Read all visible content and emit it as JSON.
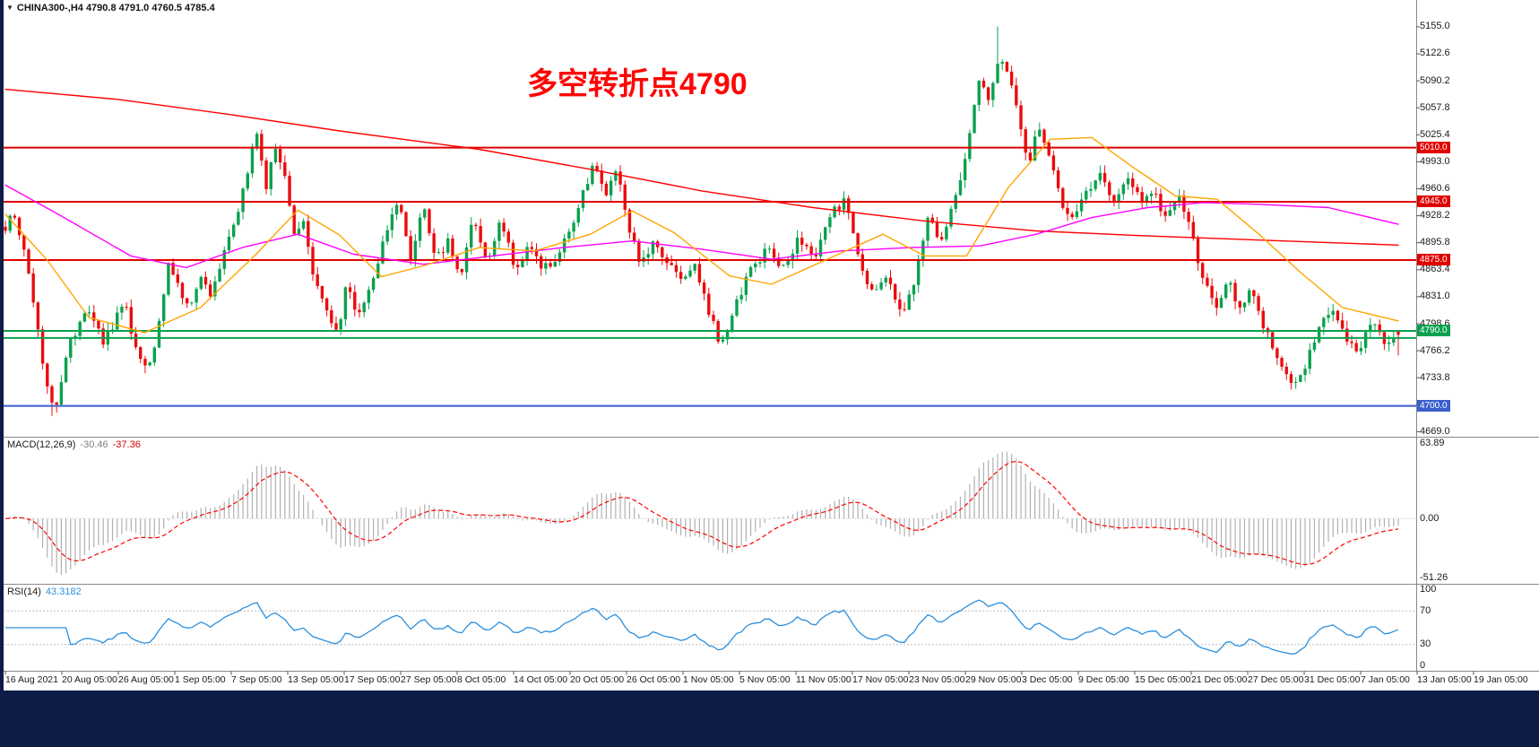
{
  "chart": {
    "overlay": {
      "arrow": "▼",
      "text": "CHINA300-,H4  4790.8 4791.0 4760.5 4785.4"
    },
    "annotation": {
      "text": "多空转折点4790",
      "color": "#fe0606"
    }
  },
  "chart_data": {
    "type": "candlestick",
    "symbol": "CHINA300-",
    "timeframe": "H4",
    "title": "CHINA300-,H4",
    "last_quote": {
      "open": 4790.8,
      "high": 4791.0,
      "low": 4760.5,
      "close": 4785.4
    },
    "extremes": {
      "high": 5155.4,
      "low": 4688.0
    },
    "num_candles": 300,
    "style": {
      "up_color": "#0aa14e",
      "down_color": "#ec0b0b",
      "macd_hist": "#b0b0b0",
      "macd_signal": "#ff0000",
      "rsi_line": "#2a8fdd",
      "background": "#ffffff",
      "panel_border": "#888888",
      "footer_color": "#0c1c47"
    },
    "y_axis": {
      "ticks": [
        5155.0,
        5122.6,
        5090.2,
        5057.8,
        5025.4,
        4993.0,
        4960.6,
        4928.2,
        4895.8,
        4863.4,
        4831.0,
        4798.6,
        4766.2,
        4733.8,
        4701.4,
        4669.0
      ],
      "range": [
        4663,
        5185
      ]
    },
    "x_axis": {
      "labels": [
        "16 Aug 2021",
        "20 Aug 05:00",
        "26 Aug 05:00",
        "1 Sep 05:00",
        "7 Sep 05:00",
        "13 Sep 05:00",
        "17 Sep 05:00",
        "27 Sep 05:00",
        "8 Oct 05:00",
        "14 Oct 05:00",
        "20 Oct 05:00",
        "26 Oct 05:00",
        "1 Nov 05:00",
        "5 Nov 05:00",
        "11 Nov 05:00",
        "17 Nov 05:00",
        "23 Nov 05:00",
        "29 Nov 05:00",
        "3 Dec 05:00",
        "9 Dec 05:00",
        "15 Dec 05:00",
        "21 Dec 05:00",
        "27 Dec 05:00",
        "31 Dec 05:00",
        "7 Jan 05:00",
        "13 Jan 05:00",
        "19 Jan 05:00"
      ]
    },
    "horizontal_lines": [
      {
        "price": 5010.0,
        "color": "#e00000",
        "width": 2,
        "label": "5010.0"
      },
      {
        "price": 4945.0,
        "color": "#e00000",
        "width": 2,
        "label": "4945.0"
      },
      {
        "price": 4875.0,
        "color": "#e00000",
        "width": 2,
        "label": "4875.0"
      },
      {
        "price": 4790.0,
        "color": "#0aa14e",
        "width": 2,
        "label": "4790.0"
      },
      {
        "price": 4781.5,
        "color": "#0aa14e",
        "width": 2,
        "label": null
      },
      {
        "price": 4700.0,
        "color": "#3a5fcd",
        "width": 2,
        "label": "4700.0"
      }
    ],
    "moving_averages": [
      {
        "name": "ma-slow",
        "color": "#ff0000",
        "points": [
          [
            0,
            5080
          ],
          [
            0.08,
            5068
          ],
          [
            0.16,
            5050
          ],
          [
            0.24,
            5030
          ],
          [
            0.34,
            5008
          ],
          [
            0.42,
            4984
          ],
          [
            0.5,
            4958
          ],
          [
            0.58,
            4938
          ],
          [
            0.66,
            4922
          ],
          [
            0.74,
            4910
          ],
          [
            0.82,
            4904
          ],
          [
            0.9,
            4899
          ],
          [
            1,
            4893
          ]
        ]
      },
      {
        "name": "ma-mid",
        "color": "#ff00ff",
        "points": [
          [
            0,
            4965
          ],
          [
            0.04,
            4928
          ],
          [
            0.09,
            4880
          ],
          [
            0.13,
            4866
          ],
          [
            0.17,
            4890
          ],
          [
            0.21,
            4906
          ],
          [
            0.25,
            4882
          ],
          [
            0.3,
            4870
          ],
          [
            0.35,
            4880
          ],
          [
            0.4,
            4890
          ],
          [
            0.45,
            4898
          ],
          [
            0.5,
            4888
          ],
          [
            0.55,
            4876
          ],
          [
            0.6,
            4886
          ],
          [
            0.65,
            4890
          ],
          [
            0.7,
            4892
          ],
          [
            0.74,
            4906
          ],
          [
            0.78,
            4926
          ],
          [
            0.82,
            4938
          ],
          [
            0.86,
            4944
          ],
          [
            0.9,
            4942
          ],
          [
            0.95,
            4938
          ],
          [
            1,
            4918
          ]
        ]
      },
      {
        "name": "ma-fast",
        "color": "#ffa500",
        "points": [
          [
            0,
            4930
          ],
          [
            0.03,
            4875
          ],
          [
            0.06,
            4806
          ],
          [
            0.1,
            4788
          ],
          [
            0.14,
            4818
          ],
          [
            0.18,
            4882
          ],
          [
            0.21,
            4935
          ],
          [
            0.24,
            4905
          ],
          [
            0.27,
            4855
          ],
          [
            0.3,
            4868
          ],
          [
            0.34,
            4890
          ],
          [
            0.38,
            4886
          ],
          [
            0.42,
            4906
          ],
          [
            0.45,
            4934
          ],
          [
            0.48,
            4908
          ],
          [
            0.52,
            4856
          ],
          [
            0.55,
            4846
          ],
          [
            0.59,
            4876
          ],
          [
            0.63,
            4906
          ],
          [
            0.66,
            4880
          ],
          [
            0.69,
            4880
          ],
          [
            0.72,
            4962
          ],
          [
            0.75,
            5020
          ],
          [
            0.78,
            5022
          ],
          [
            0.81,
            4986
          ],
          [
            0.84,
            4952
          ],
          [
            0.87,
            4948
          ],
          [
            0.9,
            4906
          ],
          [
            0.93,
            4860
          ],
          [
            0.96,
            4818
          ],
          [
            1,
            4802
          ]
        ]
      }
    ],
    "price_path": [
      [
        0,
        4915
      ],
      [
        0.006,
        4930
      ],
      [
        0.014,
        4885
      ],
      [
        0.022,
        4800
      ],
      [
        0.03,
        4720
      ],
      [
        0.036,
        4700
      ],
      [
        0.044,
        4765
      ],
      [
        0.052,
        4795
      ],
      [
        0.06,
        4812
      ],
      [
        0.07,
        4778
      ],
      [
        0.078,
        4800
      ],
      [
        0.086,
        4822
      ],
      [
        0.094,
        4762
      ],
      [
        0.102,
        4740
      ],
      [
        0.11,
        4795
      ],
      [
        0.117,
        4868
      ],
      [
        0.124,
        4850
      ],
      [
        0.131,
        4815
      ],
      [
        0.14,
        4852
      ],
      [
        0.148,
        4832
      ],
      [
        0.158,
        4888
      ],
      [
        0.168,
        4942
      ],
      [
        0.175,
        4992
      ],
      [
        0.181,
        5030
      ],
      [
        0.187,
        4962
      ],
      [
        0.193,
        5015
      ],
      [
        0.199,
        4990
      ],
      [
        0.207,
        4905
      ],
      [
        0.214,
        4922
      ],
      [
        0.222,
        4848
      ],
      [
        0.23,
        4812
      ],
      [
        0.238,
        4786
      ],
      [
        0.246,
        4852
      ],
      [
        0.253,
        4806
      ],
      [
        0.261,
        4842
      ],
      [
        0.272,
        4900
      ],
      [
        0.282,
        4952
      ],
      [
        0.291,
        4872
      ],
      [
        0.3,
        4940
      ],
      [
        0.309,
        4872
      ],
      [
        0.318,
        4902
      ],
      [
        0.327,
        4852
      ],
      [
        0.336,
        4928
      ],
      [
        0.345,
        4872
      ],
      [
        0.356,
        4922
      ],
      [
        0.366,
        4865
      ],
      [
        0.376,
        4895
      ],
      [
        0.386,
        4862
      ],
      [
        0.396,
        4880
      ],
      [
        0.406,
        4915
      ],
      [
        0.416,
        4962
      ],
      [
        0.424,
        4992
      ],
      [
        0.431,
        4952
      ],
      [
        0.439,
        4982
      ],
      [
        0.448,
        4908
      ],
      [
        0.457,
        4870
      ],
      [
        0.466,
        4902
      ],
      [
        0.476,
        4868
      ],
      [
        0.487,
        4850
      ],
      [
        0.496,
        4868
      ],
      [
        0.505,
        4812
      ],
      [
        0.514,
        4772
      ],
      [
        0.524,
        4822
      ],
      [
        0.535,
        4862
      ],
      [
        0.547,
        4888
      ],
      [
        0.558,
        4868
      ],
      [
        0.57,
        4902
      ],
      [
        0.581,
        4872
      ],
      [
        0.592,
        4928
      ],
      [
        0.603,
        4948
      ],
      [
        0.613,
        4880
      ],
      [
        0.623,
        4830
      ],
      [
        0.633,
        4860
      ],
      [
        0.643,
        4812
      ],
      [
        0.652,
        4838
      ],
      [
        0.662,
        4928
      ],
      [
        0.671,
        4898
      ],
      [
        0.68,
        4938
      ],
      [
        0.69,
        5005
      ],
      [
        0.699,
        5088
      ],
      [
        0.707,
        5068
      ],
      [
        0.714,
        5118
      ],
      [
        0.721,
        5098
      ],
      [
        0.728,
        5040
      ],
      [
        0.735,
        4992
      ],
      [
        0.742,
        5038
      ],
      [
        0.75,
        4998
      ],
      [
        0.759,
        4940
      ],
      [
        0.768,
        4930
      ],
      [
        0.778,
        4962
      ],
      [
        0.787,
        4985
      ],
      [
        0.796,
        4940
      ],
      [
        0.806,
        4972
      ],
      [
        0.815,
        4945
      ],
      [
        0.824,
        4958
      ],
      [
        0.833,
        4925
      ],
      [
        0.842,
        4952
      ],
      [
        0.852,
        4905
      ],
      [
        0.861,
        4845
      ],
      [
        0.87,
        4822
      ],
      [
        0.878,
        4850
      ],
      [
        0.886,
        4812
      ],
      [
        0.894,
        4838
      ],
      [
        0.902,
        4800
      ],
      [
        0.91,
        4768
      ],
      [
        0.92,
        4735
      ],
      [
        0.928,
        4728
      ],
      [
        0.936,
        4760
      ],
      [
        0.944,
        4800
      ],
      [
        0.952,
        4815
      ],
      [
        0.96,
        4790
      ],
      [
        0.97,
        4762
      ],
      [
        0.98,
        4800
      ],
      [
        0.99,
        4778
      ],
      [
        1,
        4786
      ]
    ],
    "indicators": {
      "macd": {
        "name": "MACD(12,26,9)",
        "value_main": "-30.46",
        "value_signal": "-37.36",
        "fast": 12,
        "slow": 26,
        "signal": 9,
        "axis": [
          63.89,
          0.0,
          -51.26
        ]
      },
      "rsi": {
        "name": "RSI(14)",
        "value": "43.3182",
        "period": 14,
        "axis": [
          100,
          70,
          30,
          0
        ],
        "levels": [
          70,
          30
        ]
      }
    }
  }
}
